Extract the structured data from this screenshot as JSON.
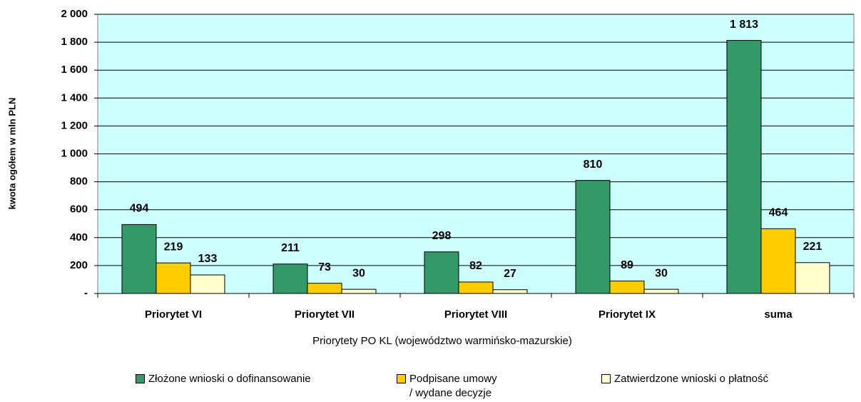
{
  "chart_data": {
    "type": "bar",
    "ylabel": "kwota ogółem w mln PLN",
    "xlabel": "Priorytety PO KL (województwo warmińsko-mazurskie)",
    "categories": [
      "Priorytet VI",
      "Priorytet VII",
      "Priorytet VIII",
      "Priorytet IX",
      "suma"
    ],
    "series": [
      {
        "name": "Złożone wnioski o dofinansowanie",
        "color": "#339966",
        "values": [
          494,
          211,
          298,
          810,
          1813
        ],
        "value_labels": [
          "494",
          "211",
          "298",
          "810",
          "1 813"
        ]
      },
      {
        "name": "Podpisane umowy / wydane decyzje",
        "color": "#ffcc00",
        "values": [
          219,
          73,
          82,
          89,
          464
        ]
      },
      {
        "name": "Zatwierdzone wnioski o płatność",
        "color": "#ffffcc",
        "values": [
          133,
          30,
          27,
          30,
          221
        ]
      }
    ],
    "ylim": [
      0,
      2000
    ],
    "yticks": [
      {
        "value": 0,
        "label": "-"
      },
      200,
      400,
      600,
      800,
      {
        "value": 1000,
        "label": "1 000"
      },
      {
        "value": 1200,
        "label": "1 200"
      },
      {
        "value": 1400,
        "label": "1 400"
      },
      {
        "value": 1600,
        "label": "1 600"
      },
      {
        "value": 1800,
        "label": "1 800"
      },
      {
        "value": 2000,
        "label": "2 000"
      }
    ],
    "grid": true,
    "plot_background": "#ccffff"
  }
}
